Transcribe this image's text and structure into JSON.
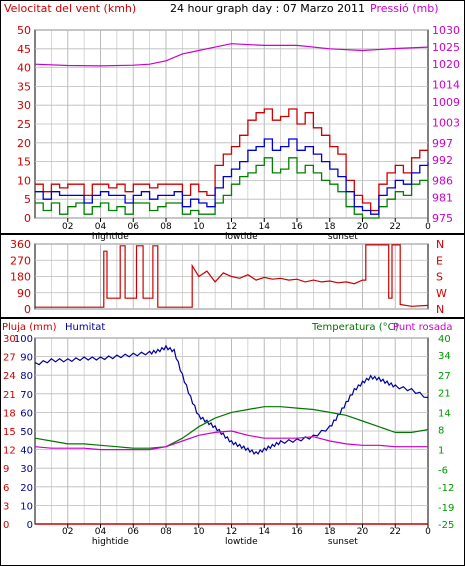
{
  "header": {
    "left_label": "Velocitat del vent (kmh)",
    "title": "24 hour graph day : 07 Marzo 2011",
    "right_label": "Pressió (mb)"
  },
  "bottom_header": {
    "rain_label": "Pluja (mm)",
    "humidity_label": "Humitat",
    "temp_label": "Temperatura (°C)",
    "dew_label": "Punt rosada"
  },
  "x_axis": {
    "ticks": [
      "02",
      "04",
      "06",
      "08",
      "10",
      "12",
      "14",
      "16",
      "18",
      "20",
      "22",
      "0"
    ],
    "events_top": [
      {
        "label": "hightide",
        "at": 4.6
      },
      {
        "label": "lowtide",
        "at": 12.6
      },
      {
        "label": "sunset",
        "at": 18.8
      }
    ],
    "events_bottom": [
      {
        "label": "hightide",
        "at": 4.6
      },
      {
        "label": "lowtide",
        "at": 12.6
      },
      {
        "label": "sunset",
        "at": 18.8
      }
    ]
  },
  "colors": {
    "wind_speed": "#cc0000",
    "wind_avg": "#0000cc",
    "wind_min": "#008000",
    "pressure": "#cc00cc",
    "direction": "#cc0000",
    "humidity": "#000099",
    "temperature": "#007700",
    "dew_point": "#cc00cc",
    "rain": "#cc0000",
    "left_axis": "#cc0000",
    "right_axis_top": "#cc00cc",
    "right_axis_bottom": "#009900",
    "humidity_axis": "#000099",
    "grid": "#bbbbbb"
  },
  "chart_data": [
    {
      "type": "line",
      "xlim": [
        0,
        24
      ],
      "left_axis": {
        "label": "Velocitat del vent (kmh)",
        "ylim": [
          0,
          50
        ],
        "ticks": [
          0,
          5,
          10,
          15,
          20,
          25,
          30,
          35,
          40,
          45,
          50
        ]
      },
      "right_axis": {
        "label": "Pressió (mb)",
        "ylim": [
          975,
          1030
        ],
        "ticks": [
          975,
          981,
          986,
          992,
          997,
          1003,
          1009,
          1014,
          1020,
          1025,
          1030
        ]
      },
      "series": [
        {
          "name": "Pressió (mb)",
          "axis": "right",
          "x": [
            0,
            2,
            4,
            6,
            7,
            8,
            9,
            10,
            11,
            12,
            14,
            16,
            18,
            20,
            22,
            24
          ],
          "y": [
            1020,
            1019.6,
            1019.5,
            1019.7,
            1020,
            1021,
            1023,
            1024,
            1025,
            1026,
            1025.5,
            1025.5,
            1024.5,
            1024,
            1024.6,
            1025
          ]
        },
        {
          "axis": "left",
          "x": [
            0,
            0.5,
            1,
            1.5,
            2,
            2.5,
            3,
            3.5,
            4,
            4.5,
            5,
            5.5,
            6,
            6.5,
            7,
            7.5,
            8,
            8.5,
            9,
            9.5,
            10,
            10.5,
            11,
            11.5,
            12,
            12.5,
            13,
            13.5,
            14,
            14.5,
            15,
            15.5,
            16,
            16.5,
            17,
            17.5,
            18,
            18.5,
            19,
            19.5,
            20,
            20.5,
            21,
            21.5,
            22,
            22.5,
            23,
            23.5,
            24
          ],
          "y": [
            9,
            7,
            9,
            8,
            9,
            9,
            6,
            9,
            9,
            8,
            9,
            7,
            9,
            9,
            8,
            9,
            9,
            9,
            6,
            9,
            7,
            6,
            14,
            17,
            19,
            22,
            26,
            28,
            29,
            26,
            27,
            29,
            25,
            28,
            24,
            22,
            19,
            17,
            10,
            6,
            4,
            2,
            9,
            12,
            14,
            12,
            16,
            18,
            18
          ]
        },
        {
          "axis": "left",
          "x": [
            0,
            0.5,
            1,
            1.5,
            2,
            2.5,
            3,
            3.5,
            4,
            4.5,
            5,
            5.5,
            6,
            6.5,
            7,
            7.5,
            8,
            8.5,
            9,
            9.5,
            10,
            10.5,
            11,
            11.5,
            12,
            12.5,
            13,
            13.5,
            14,
            14.5,
            15,
            15.5,
            16,
            16.5,
            17,
            17.5,
            18,
            18.5,
            19,
            19.5,
            20,
            20.5,
            21,
            21.5,
            22,
            22.5,
            23,
            23.5,
            24
          ],
          "y": [
            7,
            5,
            7,
            6,
            6,
            6,
            4,
            6,
            7,
            6,
            6,
            4,
            6,
            7,
            5,
            6,
            6,
            7,
            3,
            5,
            4,
            3,
            8,
            11,
            13,
            15,
            18,
            19,
            21,
            18,
            19,
            21,
            18,
            19,
            17,
            15,
            13,
            11,
            7,
            3,
            2,
            1,
            6,
            8,
            10,
            9,
            12,
            14,
            15
          ]
        },
        {
          "axis": "left",
          "x": [
            0,
            0.5,
            1,
            1.5,
            2,
            2.5,
            3,
            3.5,
            4,
            4.5,
            5,
            5.5,
            6,
            6.5,
            7,
            7.5,
            8,
            8.5,
            9,
            9.5,
            10,
            10.5,
            11,
            11.5,
            12,
            12.5,
            13,
            13.5,
            14,
            14.5,
            15,
            15.5,
            16,
            16.5,
            17,
            17.5,
            18,
            18.5,
            19,
            19.5,
            20,
            20.5,
            21,
            21.5,
            22,
            22.5,
            23,
            23.5,
            24
          ],
          "y": [
            4,
            2,
            4,
            1,
            3,
            4,
            1,
            3,
            4,
            2,
            3,
            1,
            4,
            4,
            2,
            3,
            4,
            4,
            1,
            2,
            1,
            1,
            4,
            6,
            9,
            11,
            12,
            14,
            16,
            12,
            13,
            16,
            12,
            14,
            12,
            10,
            9,
            7,
            3,
            1,
            0,
            0,
            3,
            5,
            7,
            6,
            9,
            10,
            11
          ]
        }
      ]
    },
    {
      "type": "line",
      "xlim": [
        0,
        24
      ],
      "left_axis": {
        "ylim": [
          0,
          360
        ],
        "ticks": [
          0,
          90,
          180,
          270,
          360
        ]
      },
      "right_axis": {
        "ticks": [
          "N",
          "E",
          "S",
          "W",
          "N"
        ]
      },
      "series": [
        {
          "axis": "left",
          "x": [
            0,
            4.2,
            4.2,
            4.4,
            4.4,
            5.2,
            5.2,
            5.5,
            5.5,
            6.2,
            6.2,
            6.6,
            6.6,
            7.2,
            7.2,
            7.5,
            7.5,
            9.6,
            9.6,
            10,
            10.5,
            11,
            11.5,
            12,
            12.5,
            13,
            13.5,
            14,
            14.5,
            15,
            15.5,
            16,
            16.5,
            17,
            17.5,
            18,
            18.5,
            19,
            19.5,
            20,
            20.2,
            20.2,
            21.6,
            21.6,
            21.8,
            21.8,
            22.3,
            22.3,
            23,
            24
          ],
          "y": [
            10,
            10,
            320,
            320,
            60,
            60,
            350,
            350,
            60,
            60,
            350,
            350,
            60,
            60,
            350,
            350,
            10,
            10,
            240,
            180,
            210,
            150,
            200,
            180,
            170,
            190,
            160,
            175,
            165,
            170,
            160,
            165,
            150,
            160,
            150,
            155,
            145,
            150,
            140,
            160,
            160,
            355,
            355,
            60,
            60,
            355,
            355,
            25,
            15,
            20
          ]
        }
      ]
    },
    {
      "type": "line",
      "xlim": [
        0,
        24
      ],
      "left_axis": {
        "label": "Pluja (mm)",
        "ylim": [
          0,
          30
        ],
        "ticks": [
          0,
          3,
          6,
          9,
          12,
          15,
          18,
          21,
          24,
          27,
          30
        ]
      },
      "humidity_axis": {
        "label": "Humitat",
        "ylim": [
          0,
          100
        ],
        "ticks": [
          0,
          10,
          20,
          30,
          40,
          50,
          60,
          70,
          80,
          90,
          100
        ]
      },
      "right_axis": {
        "label": "Temperatura (°C)",
        "ylim": [
          -25,
          40
        ],
        "ticks": [
          -25,
          -19,
          -12,
          -6,
          1,
          8,
          14,
          21,
          27,
          34,
          40
        ]
      },
      "series": [
        {
          "name": "Humitat",
          "axis": "humidity",
          "x": [
            0,
            1,
            2,
            3,
            4,
            5,
            6,
            7,
            7.5,
            8,
            8.5,
            9,
            9.5,
            10,
            10.5,
            11,
            11.5,
            12,
            12.5,
            13,
            13.5,
            14,
            14.5,
            15,
            16,
            17,
            18,
            18.5,
            19,
            19.5,
            20,
            20.5,
            21,
            21.5,
            22,
            23,
            24
          ],
          "y": [
            86,
            88,
            88,
            89,
            89,
            90,
            91,
            92,
            93,
            95,
            93,
            80,
            68,
            58,
            55,
            52,
            48,
            44,
            42,
            40,
            38,
            40,
            42,
            44,
            45,
            47,
            52,
            58,
            65,
            72,
            76,
            79,
            78,
            76,
            74,
            72,
            68
          ]
        },
        {
          "name": "Temperatura (°C)",
          "axis": "right",
          "x": [
            0,
            1,
            2,
            3,
            4,
            5,
            6,
            7,
            8,
            9,
            10,
            11,
            12,
            13,
            14,
            15,
            16,
            17,
            18,
            19,
            20,
            21,
            22,
            23,
            24
          ],
          "y": [
            5,
            4,
            3,
            3,
            2.5,
            2,
            1.5,
            1.5,
            2,
            5,
            9,
            12,
            14,
            15,
            16,
            16,
            15.5,
            15,
            14,
            13,
            11,
            9,
            7,
            7,
            8
          ]
        },
        {
          "name": "Punt rosada",
          "axis": "right",
          "x": [
            0,
            1,
            2,
            3,
            4,
            5,
            6,
            7,
            8,
            9,
            10,
            11,
            12,
            13,
            14,
            15,
            16,
            17,
            18,
            19,
            20,
            21,
            22,
            23,
            24
          ],
          "y": [
            2,
            1.5,
            1.5,
            1.5,
            1,
            1,
            1,
            1,
            2,
            4,
            6,
            7,
            7.5,
            6,
            5,
            5,
            5,
            5.5,
            4,
            3,
            2.5,
            2.5,
            2,
            2,
            2
          ]
        },
        {
          "name": "Pluja (mm)",
          "axis": "left",
          "x": [
            0,
            24
          ],
          "y": [
            0,
            0
          ]
        }
      ]
    }
  ]
}
